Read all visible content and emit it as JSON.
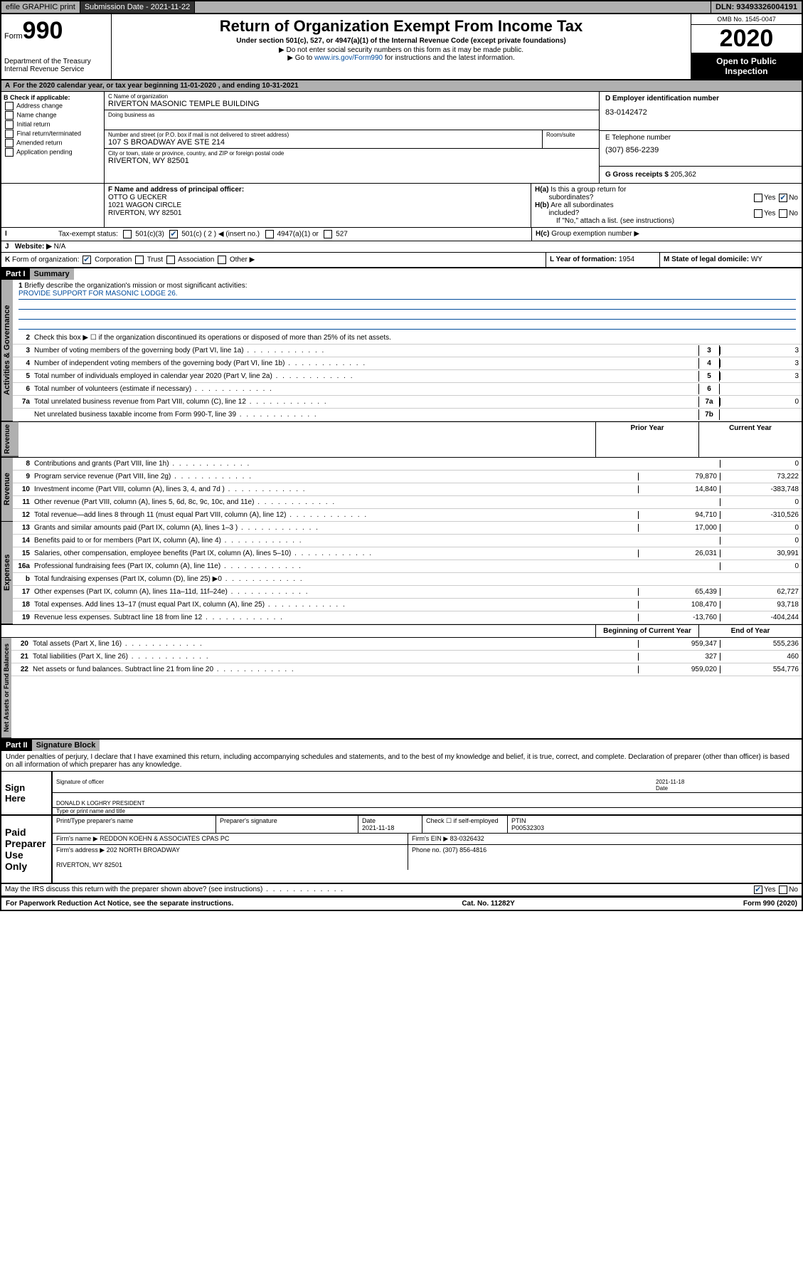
{
  "topbar": {
    "efile": "efile GRAPHIC print",
    "subdate_lbl": "Submission Date - 2021-11-22",
    "dln": "DLN: 93493326004191"
  },
  "header": {
    "form": "Form",
    "num": "990",
    "dept": "Department of the Treasury\nInternal Revenue Service",
    "title": "Return of Organization Exempt From Income Tax",
    "sub1": "Under section 501(c), 527, or 4947(a)(1) of the Internal Revenue Code (except private foundations)",
    "sub2": "▶ Do not enter social security numbers on this form as it may be made public.",
    "sub3": "▶ Go to www.irs.gov/Form990 for instructions and the latest information.",
    "omb": "OMB No. 1545-0047",
    "year": "2020",
    "open": "Open to Public Inspection"
  },
  "A": {
    "txt": "For the 2020 calendar year, or tax year beginning 11-01-2020     , and ending 10-31-2021"
  },
  "B": {
    "lbl": "B Check if applicable:",
    "opts": [
      "Address change",
      "Name change",
      "Initial return",
      "Final return/terminated",
      "Amended return",
      "Application pending"
    ]
  },
  "C": {
    "lbl": "C Name of organization",
    "name": "RIVERTON MASONIC TEMPLE BUILDING",
    "dba": "Doing business as",
    "addr_lbl": "Number and street (or P.O. box if mail is not delivered to street address)",
    "room": "Room/suite",
    "addr": "107 S BROADWAY AVE STE 214",
    "city_lbl": "City or town, state or province, country, and ZIP or foreign postal code",
    "city": "RIVERTON, WY  82501"
  },
  "D": {
    "lbl": "D Employer identification number",
    "val": "83-0142472"
  },
  "E": {
    "lbl": "E Telephone number",
    "val": "(307) 856-2239"
  },
  "G": {
    "lbl": "G Gross receipts $",
    "val": "205,362"
  },
  "F": {
    "lbl": "F  Name and address of principal officer:",
    "name": "OTTO G UECKER",
    "addr": "1021 WAGON CIRCLE\nRIVERTON, WY  82501"
  },
  "H": {
    "a": "H(a)  Is this a group return for subordinates?",
    "b": "H(b)  Are all subordinates included?",
    "note": "If \"No,\" attach a list. (see instructions)",
    "c": "H(c)  Group exemption number ▶"
  },
  "I": {
    "lbl": "Tax-exempt status:",
    "opts": [
      "501(c)(3)",
      "501(c) ( 2 ) ◀ (insert no.)",
      "4947(a)(1) or",
      "527"
    ]
  },
  "J": {
    "lbl": "Website: ▶",
    "val": "N/A"
  },
  "K": {
    "lbl": "K Form of organization:",
    "opts": [
      "Corporation",
      "Trust",
      "Association",
      "Other ▶"
    ]
  },
  "L": {
    "lbl": "L Year of formation:",
    "val": "1954"
  },
  "M": {
    "lbl": "M State of legal domicile:",
    "val": "WY"
  },
  "part1": {
    "hdr": "Part I",
    "title": "Summary"
  },
  "part2": {
    "hdr": "Part II",
    "title": "Signature Block"
  },
  "tabs": [
    "Activities & Governance",
    "Revenue",
    "Expenses",
    "Net Assets or Fund Balances"
  ],
  "summary": {
    "l1": {
      "num": "1",
      "txt": "Briefly describe the organization's mission or most significant activities:",
      "val": "PROVIDE SUPPORT FOR MASONIC LODGE 26."
    },
    "l2": {
      "num": "2",
      "txt": "Check this box ▶ ☐  if the organization discontinued its operations or disposed of more than 25% of its net assets."
    },
    "rows": [
      {
        "num": "3",
        "txt": "Number of voting members of the governing body (Part VI, line 1a)",
        "box": "3",
        "v": "3"
      },
      {
        "num": "4",
        "txt": "Number of independent voting members of the governing body (Part VI, line 1b)",
        "box": "4",
        "v": "3"
      },
      {
        "num": "5",
        "txt": "Total number of individuals employed in calendar year 2020 (Part V, line 2a)",
        "box": "5",
        "v": "3"
      },
      {
        "num": "6",
        "txt": "Total number of volunteers (estimate if necessary)",
        "box": "6",
        "v": ""
      },
      {
        "num": "7a",
        "txt": "Total unrelated business revenue from Part VIII, column (C), line 12",
        "box": "7a",
        "v": "0"
      },
      {
        "num": "",
        "txt": "Net unrelated business taxable income from Form 990-T, line 39",
        "box": "7b",
        "v": ""
      }
    ],
    "cols": [
      "Prior Year",
      "Current Year"
    ],
    "rev": [
      {
        "num": "8",
        "txt": "Contributions and grants (Part VIII, line 1h)",
        "v1": "",
        "v2": "0"
      },
      {
        "num": "9",
        "txt": "Program service revenue (Part VIII, line 2g)",
        "v1": "79,870",
        "v2": "73,222"
      },
      {
        "num": "10",
        "txt": "Investment income (Part VIII, column (A), lines 3, 4, and 7d )",
        "v1": "14,840",
        "v2": "-383,748"
      },
      {
        "num": "11",
        "txt": "Other revenue (Part VIII, column (A), lines 5, 6d, 8c, 9c, 10c, and 11e)",
        "v1": "",
        "v2": "0"
      },
      {
        "num": "12",
        "txt": "Total revenue—add lines 8 through 11 (must equal Part VIII, column (A), line 12)",
        "v1": "94,710",
        "v2": "-310,526"
      }
    ],
    "exp": [
      {
        "num": "13",
        "txt": "Grants and similar amounts paid (Part IX, column (A), lines 1–3 )",
        "v1": "17,000",
        "v2": "0"
      },
      {
        "num": "14",
        "txt": "Benefits paid to or for members (Part IX, column (A), line 4)",
        "v1": "",
        "v2": "0"
      },
      {
        "num": "15",
        "txt": "Salaries, other compensation, employee benefits (Part IX, column (A), lines 5–10)",
        "v1": "26,031",
        "v2": "30,991"
      },
      {
        "num": "16a",
        "txt": "Professional fundraising fees (Part IX, column (A), line 11e)",
        "v1": "",
        "v2": "0"
      },
      {
        "num": "b",
        "txt": "Total fundraising expenses (Part IX, column (D), line 25) ▶0",
        "v1": "shade",
        "v2": "shade"
      },
      {
        "num": "17",
        "txt": "Other expenses (Part IX, column (A), lines 11a–11d, 11f–24e)",
        "v1": "65,439",
        "v2": "62,727"
      },
      {
        "num": "18",
        "txt": "Total expenses. Add lines 13–17 (must equal Part IX, column (A), line 25)",
        "v1": "108,470",
        "v2": "93,718"
      },
      {
        "num": "19",
        "txt": "Revenue less expenses. Subtract line 18 from line 12",
        "v1": "-13,760",
        "v2": "-404,244"
      }
    ],
    "cols2": [
      "Beginning of Current Year",
      "End of Year"
    ],
    "net": [
      {
        "num": "20",
        "txt": "Total assets (Part X, line 16)",
        "v1": "959,347",
        "v2": "555,236"
      },
      {
        "num": "21",
        "txt": "Total liabilities (Part X, line 26)",
        "v1": "327",
        "v2": "460"
      },
      {
        "num": "22",
        "txt": "Net assets or fund balances. Subtract line 21 from line 20",
        "v1": "959,020",
        "v2": "554,776"
      }
    ]
  },
  "sig": {
    "decl": "Under penalties of perjury, I declare that I have examined this return, including accompanying schedules and statements, and to the best of my knowledge and belief, it is true, correct, and complete. Declaration of preparer (other than officer) is based on all information of which preparer has any knowledge.",
    "here": "Sign Here",
    "sigoff": "Signature of officer",
    "date": "2021-11-18",
    "date_lbl": "Date",
    "name": "DONALD K LOGHRY PRESIDENT",
    "name_lbl": "Type or print name and title",
    "paid": "Paid Preparer Use Only",
    "p_name_lbl": "Print/Type preparer's name",
    "p_sig_lbl": "Preparer's signature",
    "p_date": "2021-11-18",
    "p_check": "Check ☐  if self-employed",
    "ptin_lbl": "PTIN",
    "ptin": "P00532303",
    "firm_lbl": "Firm's name    ▶",
    "firm": "REDDON KOEHN & ASSOCIATES CPAS PC",
    "ein_lbl": "Firm's EIN ▶",
    "ein": "83-0326432",
    "faddr_lbl": "Firm's address ▶",
    "faddr": "202 NORTH BROADWAY\n\nRIVERTON, WY  82501",
    "phone_lbl": "Phone no.",
    "phone": "(307) 856-4816",
    "discuss": "May the IRS discuss this return with the preparer shown above? (see instructions)"
  },
  "footer": {
    "l": "For Paperwork Reduction Act Notice, see the separate instructions.",
    "c": "Cat. No. 11282Y",
    "r": "Form 990 (2020)"
  }
}
